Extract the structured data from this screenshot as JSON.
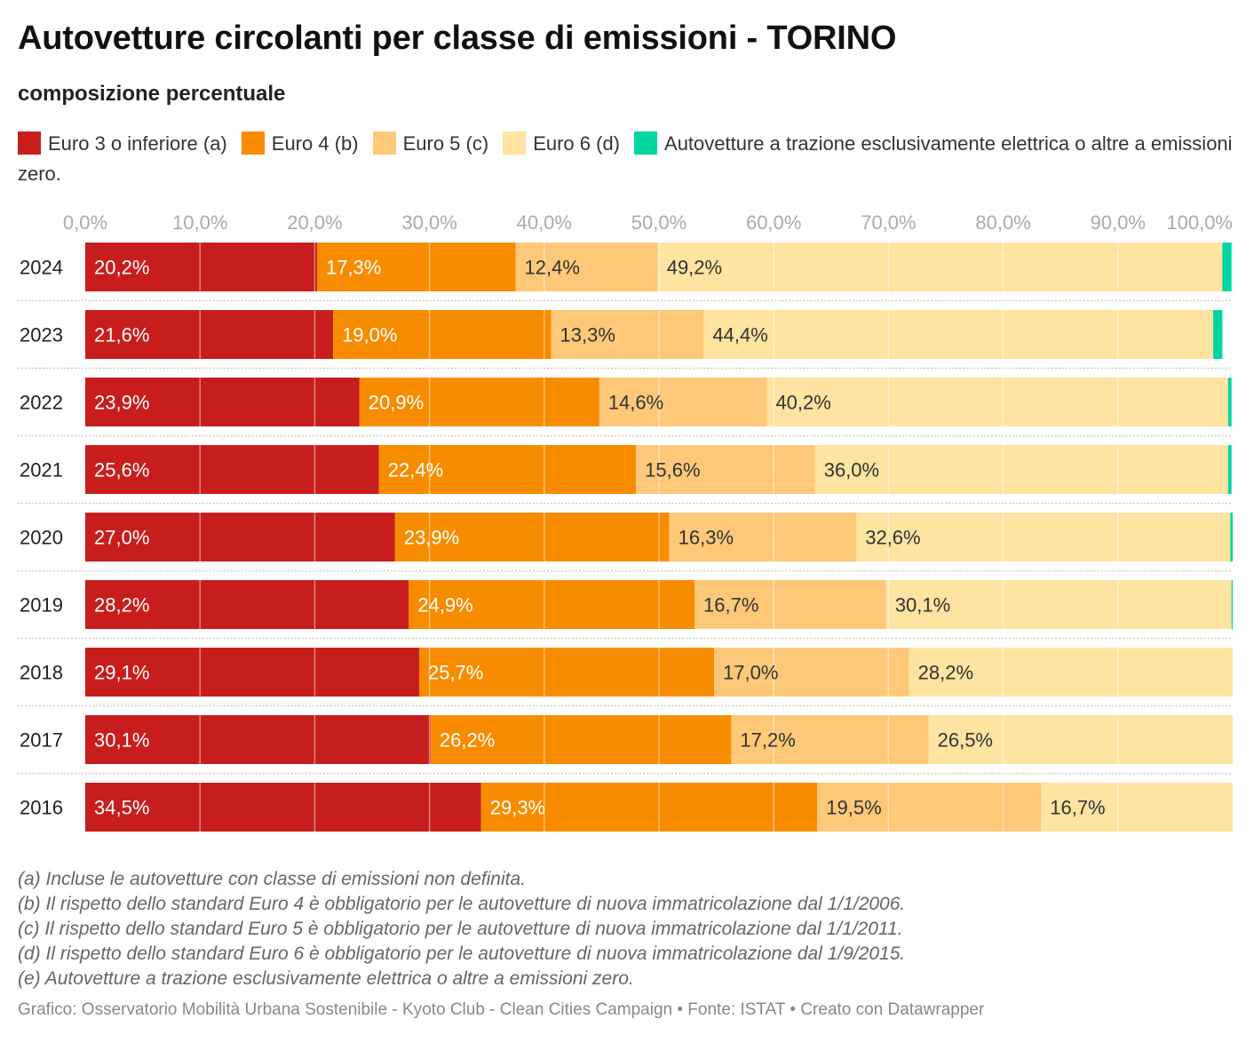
{
  "title": "Autovetture circolanti per classe di emissioni - TORINO",
  "subtitle": "composizione percentuale",
  "legend": [
    {
      "label": "Euro 3 o inferiore (a)",
      "color": "#c71e1d"
    },
    {
      "label": "Euro 4 (b)",
      "color": "#f78c00"
    },
    {
      "label": "Euro 5 (c)",
      "color": "#fdc878"
    },
    {
      "label": "Euro 6 (d)",
      "color": "#fee3a1"
    },
    {
      "label": "Autovetture a trazione esclusivamente elettrica o altre a emissioni zero.",
      "color": "#00d6a2"
    }
  ],
  "notes": [
    "(a) Incluse le autovetture con classe di emissioni non definita.",
    "(b) Il rispetto dello standard Euro 4 è obbligatorio per le autovetture di nuova immatricolazione dal 1/1/2006.",
    "(c) Il rispetto dello standard Euro 5 è obbligatorio per le autovetture di nuova immatricolazione dal 1/1/2011.",
    "(d) Il rispetto dello standard Euro 6 è obbligatorio per le autovetture di nuova immatricolazione dal 1/9/2015.",
    "(e) Autovetture a trazione esclusivamente elettrica o altre a emissioni zero."
  ],
  "source": "Grafico: Osservatorio Mobilità Urbana Sostenibile - Kyoto Club - Clean Cities Campaign • Fonte: ISTAT • Creato con Datawrapper",
  "chart_data": {
    "type": "bar",
    "orientation": "horizontal",
    "stacked": true,
    "xlim": [
      0,
      100
    ],
    "x_ticks": [
      "0,0%",
      "10,0%",
      "20,0%",
      "30,0%",
      "40,0%",
      "50,0%",
      "60,0%",
      "70,0%",
      "80,0%",
      "90,0%",
      "100,0%"
    ],
    "grid": true,
    "categories": [
      "2024",
      "2023",
      "2022",
      "2021",
      "2020",
      "2019",
      "2018",
      "2017",
      "2016"
    ],
    "series": [
      {
        "name": "Euro 3 o inferiore (a)",
        "color": "#c71e1d",
        "values": [
          20.2,
          21.6,
          23.9,
          25.6,
          27.0,
          28.2,
          29.1,
          30.1,
          34.5
        ],
        "labels": [
          "20,2%",
          "21,6%",
          "23,9%",
          "25,6%",
          "27,0%",
          "28,2%",
          "29,1%",
          "30,1%",
          "34,5%"
        ]
      },
      {
        "name": "Euro 4 (b)",
        "color": "#f78c00",
        "values": [
          17.3,
          19.0,
          20.9,
          22.4,
          23.9,
          24.9,
          25.7,
          26.2,
          29.3
        ],
        "labels": [
          "17,3%",
          "19,0%",
          "20,9%",
          "22,4%",
          "23,9%",
          "24,9%",
          "25,7%",
          "26,2%",
          "29,3%"
        ]
      },
      {
        "name": "Euro 5 (c)",
        "color": "#fdc878",
        "values": [
          12.4,
          13.3,
          14.6,
          15.6,
          16.3,
          16.7,
          17.0,
          17.2,
          19.5
        ],
        "labels": [
          "12,4%",
          "13,3%",
          "14,6%",
          "15,6%",
          "16,3%",
          "16,7%",
          "17,0%",
          "17,2%",
          "19,5%"
        ]
      },
      {
        "name": "Euro 6 (d)",
        "color": "#fee3a1",
        "values": [
          49.2,
          44.4,
          40.2,
          36.0,
          32.6,
          30.1,
          28.2,
          26.5,
          16.7
        ],
        "labels": [
          "49,2%",
          "44,4%",
          "40,2%",
          "36,0%",
          "32,6%",
          "30,1%",
          "28,2%",
          "26,5%",
          "16,7%"
        ]
      },
      {
        "name": "Autovetture a trazione esclusivamente elettrica o altre a emissioni zero.",
        "color": "#00d6a2",
        "values": [
          0.8,
          0.8,
          0.3,
          0.3,
          0.2,
          0.1,
          0.0,
          0.0,
          0.0
        ],
        "labels": [
          "",
          "",
          "",
          "",
          "",
          "",
          "",
          "",
          ""
        ]
      }
    ]
  }
}
